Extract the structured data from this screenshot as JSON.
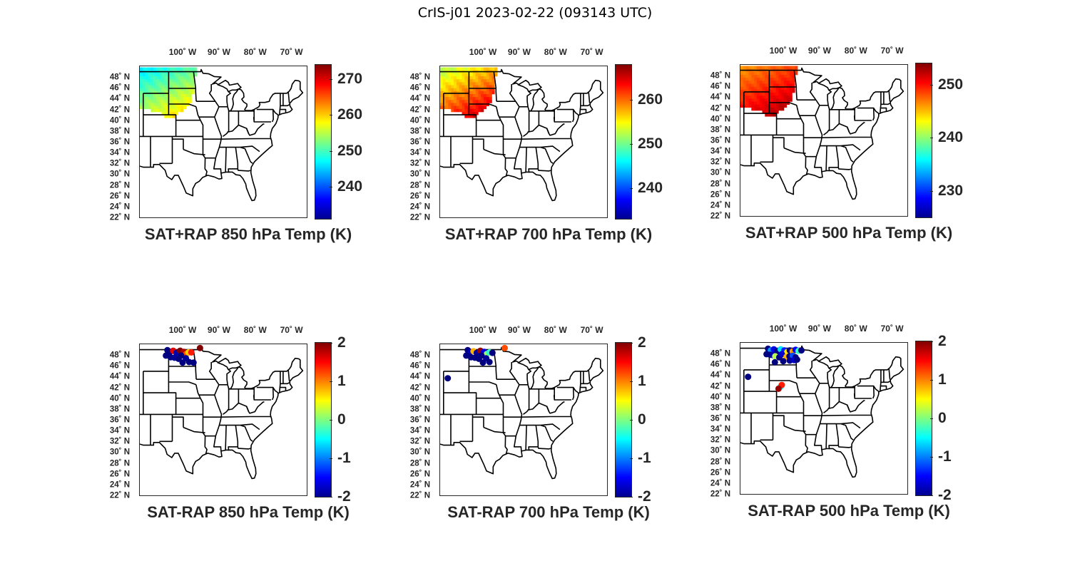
{
  "figure_title": "CrIS-j01 2023-02-22 (093143 UTC)",
  "lon_ticks": [
    "100˚ W",
    "90˚ W",
    "80˚ W",
    "70˚ W"
  ],
  "lat_ticks": [
    "48˚ N",
    "46˚ N",
    "44˚ N",
    "42˚ N",
    "40˚ N",
    "38˚ N",
    "36˚ N",
    "34˚ N",
    "32˚ N",
    "30˚ N",
    "28˚ N",
    "26˚ N",
    "24˚ N",
    "22˚ N"
  ],
  "colormap": "jet",
  "colors": {
    "state_borders": "#000000",
    "frame": "#262626"
  },
  "panels": [
    {
      "id": "sat-rap-plus-850",
      "title": "SAT+RAP 850 hPa Temp (K)",
      "field": "filled",
      "clim": [
        231,
        274
      ],
      "colorbar_ticks": [
        "240",
        "250",
        "260",
        "270"
      ],
      "colorbar_tick_values": [
        240,
        250,
        260,
        270
      ],
      "field_value_range": [
        246,
        262
      ]
    },
    {
      "id": "sat-rap-plus-700",
      "title": "SAT+RAP 700 hPa Temp (K)",
      "field": "filled",
      "clim": [
        233,
        268
      ],
      "colorbar_ticks": [
        "240",
        "250",
        "260"
      ],
      "colorbar_tick_values": [
        240,
        250,
        260
      ],
      "field_value_range": [
        252,
        268
      ]
    },
    {
      "id": "sat-rap-plus-500",
      "title": "SAT+RAP 500 hPa Temp (K)",
      "field": "filled",
      "clim": [
        225,
        254
      ],
      "colorbar_ticks": [
        "230",
        "240",
        "250"
      ],
      "colorbar_tick_values": [
        230,
        240,
        250
      ],
      "field_value_range": [
        246,
        254
      ]
    },
    {
      "id": "sat-rap-minus-850",
      "title": "SAT-RAP 850 hPa Temp (K)",
      "field": "points",
      "clim": [
        -2,
        2
      ],
      "colorbar_ticks": [
        "-2",
        "-1",
        "0",
        "1",
        "2"
      ],
      "colorbar_tick_values": [
        -2,
        -1,
        0,
        1,
        2
      ],
      "points": [
        {
          "lon": -104.4,
          "lat": 48.9,
          "v": -2
        },
        {
          "lon": -103.6,
          "lat": 48.6,
          "v": -2
        },
        {
          "lon": -102.8,
          "lat": 48.8,
          "v": 1.6
        },
        {
          "lon": -101.9,
          "lat": 48.4,
          "v": -1.8
        },
        {
          "lon": -100.9,
          "lat": 48.8,
          "v": 2
        },
        {
          "lon": -99.9,
          "lat": 48.6,
          "v": 1.8
        },
        {
          "lon": -99.2,
          "lat": 48.2,
          "v": 1.2
        },
        {
          "lon": -98.6,
          "lat": 48.5,
          "v": 0.7
        },
        {
          "lon": -97.8,
          "lat": 48.5,
          "v": 1.4
        },
        {
          "lon": -95.4,
          "lat": 49.3,
          "v": 2
        },
        {
          "lon": -104.8,
          "lat": 47.9,
          "v": -2
        },
        {
          "lon": -103.5,
          "lat": 47.6,
          "v": -2
        },
        {
          "lon": -102.4,
          "lat": 47.5,
          "v": -1.9
        },
        {
          "lon": -101.3,
          "lat": 47.3,
          "v": -2
        },
        {
          "lon": -100.6,
          "lat": 47.9,
          "v": -2
        },
        {
          "lon": -99.3,
          "lat": 47.4,
          "v": -1.9
        },
        {
          "lon": -100.2,
          "lat": 46.6,
          "v": -2
        },
        {
          "lon": -98.4,
          "lat": 46.7,
          "v": -2
        },
        {
          "lon": -97.2,
          "lat": 46.6,
          "v": -2
        }
      ]
    },
    {
      "id": "sat-rap-minus-700",
      "title": "SAT-RAP 700 hPa Temp (K)",
      "field": "points",
      "clim": [
        -2,
        2
      ],
      "colorbar_ticks": [
        "-2",
        "-1",
        "0",
        "1",
        "2"
      ],
      "colorbar_tick_values": [
        -2,
        -1,
        0,
        1,
        2
      ],
      "points": [
        {
          "lon": -104.4,
          "lat": 48.9,
          "v": -2
        },
        {
          "lon": -103.6,
          "lat": 48.6,
          "v": -1.8
        },
        {
          "lon": -102.8,
          "lat": 48.7,
          "v": 0.8
        },
        {
          "lon": -101.9,
          "lat": 48.4,
          "v": -1.9
        },
        {
          "lon": -100.9,
          "lat": 48.8,
          "v": 1.9
        },
        {
          "lon": -99.9,
          "lat": 48.6,
          "v": -1.6
        },
        {
          "lon": -99.1,
          "lat": 48.2,
          "v": 0.1
        },
        {
          "lon": -98.4,
          "lat": 48.5,
          "v": -0.3
        },
        {
          "lon": -97.6,
          "lat": 48.4,
          "v": -2
        },
        {
          "lon": -94.2,
          "lat": 49.3,
          "v": 1.2
        },
        {
          "lon": -104.8,
          "lat": 47.9,
          "v": -2
        },
        {
          "lon": -103.5,
          "lat": 47.6,
          "v": -2
        },
        {
          "lon": -102.4,
          "lat": 47.5,
          "v": -2
        },
        {
          "lon": -101.3,
          "lat": 47.3,
          "v": -2
        },
        {
          "lon": -100.6,
          "lat": 47.9,
          "v": -2
        },
        {
          "lon": -99.3,
          "lat": 47.4,
          "v": -1.9
        },
        {
          "lon": -100.2,
          "lat": 46.6,
          "v": -2
        },
        {
          "lon": -98.4,
          "lat": 46.7,
          "v": -2
        },
        {
          "lon": -109.9,
          "lat": 43.7,
          "v": -2
        }
      ]
    },
    {
      "id": "sat-rap-minus-500",
      "title": "SAT-RAP 500 hPa Temp (K)",
      "field": "points",
      "clim": [
        -2,
        2
      ],
      "colorbar_ticks": [
        "-2",
        "-1",
        "0",
        "1",
        "2"
      ],
      "colorbar_tick_values": [
        -2,
        -1,
        0,
        1,
        2
      ],
      "points": [
        {
          "lon": -104.4,
          "lat": 48.9,
          "v": -2
        },
        {
          "lon": -103.6,
          "lat": 48.6,
          "v": -0.9
        },
        {
          "lon": -102.8,
          "lat": 48.8,
          "v": -1.6
        },
        {
          "lon": -101.9,
          "lat": 48.4,
          "v": -2
        },
        {
          "lon": -100.9,
          "lat": 48.8,
          "v": -0.6
        },
        {
          "lon": -99.9,
          "lat": 48.6,
          "v": -1.4
        },
        {
          "lon": -99.1,
          "lat": 48.3,
          "v": 0.6
        },
        {
          "lon": -98.4,
          "lat": 48.6,
          "v": -2
        },
        {
          "lon": -97.6,
          "lat": 48.4,
          "v": 0.9
        },
        {
          "lon": -96.8,
          "lat": 48.7,
          "v": -1.5
        },
        {
          "lon": -96.0,
          "lat": 48.5,
          "v": -0.3
        },
        {
          "lon": -95.2,
          "lat": 48.6,
          "v": -2
        },
        {
          "lon": -104.8,
          "lat": 47.9,
          "v": -2
        },
        {
          "lon": -103.8,
          "lat": 47.8,
          "v": -2
        },
        {
          "lon": -103.0,
          "lat": 47.7,
          "v": -1.8
        },
        {
          "lon": -102.4,
          "lat": 47.5,
          "v": 0.2
        },
        {
          "lon": -101.3,
          "lat": 47.3,
          "v": -2
        },
        {
          "lon": -100.6,
          "lat": 47.9,
          "v": -1.7
        },
        {
          "lon": -99.3,
          "lat": 47.4,
          "v": 0.8
        },
        {
          "lon": -98.5,
          "lat": 47.5,
          "v": -2
        },
        {
          "lon": -97.6,
          "lat": 47.6,
          "v": -1.2
        },
        {
          "lon": -96.8,
          "lat": 47.3,
          "v": -2
        },
        {
          "lon": -100.2,
          "lat": 46.6,
          "v": -2
        },
        {
          "lon": -98.4,
          "lat": 46.7,
          "v": -1.9
        },
        {
          "lon": -97.2,
          "lat": 46.8,
          "v": -1.7
        },
        {
          "lon": -96.4,
          "lat": 46.9,
          "v": -2
        },
        {
          "lon": -102.5,
          "lat": 46.4,
          "v": -2
        },
        {
          "lon": -109.9,
          "lat": 43.7,
          "v": -2
        },
        {
          "lon": -100.9,
          "lat": 41.9,
          "v": -0.5
        },
        {
          "lon": -100.6,
          "lat": 42.2,
          "v": 1.4
        },
        {
          "lon": -101.5,
          "lat": 41.5,
          "v": 1.9
        }
      ]
    }
  ]
}
